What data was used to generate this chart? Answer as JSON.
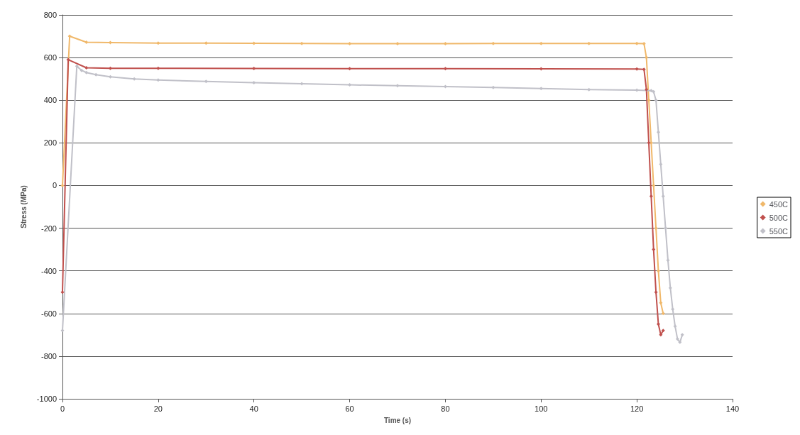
{
  "chart_data": {
    "type": "line",
    "xlabel": "Time (s)",
    "ylabel": "Stress (MPa)",
    "xlim": [
      0,
      140
    ],
    "xticks": [
      0,
      20,
      40,
      60,
      80,
      100,
      120,
      140
    ],
    "ylim": [
      -1000,
      800
    ],
    "yticks": [
      {
        "value": -1000,
        "label": "-1000"
      },
      -800,
      -600,
      -400,
      -200,
      0,
      200,
      400,
      600,
      800
    ],
    "grid": "y",
    "legend": "right",
    "marker": "diamond",
    "series": [
      {
        "name": "450C",
        "color": "#f0b86a",
        "x": [
          0,
          1.5,
          5,
          10,
          20,
          30,
          40,
          50,
          60,
          70,
          80,
          90,
          100,
          110,
          120,
          121.5,
          122,
          122.5,
          123,
          123.5,
          124,
          124.5,
          125,
          125.5
        ],
        "values": [
          0,
          700,
          672,
          670,
          668,
          668,
          667,
          666,
          665,
          665,
          665,
          666,
          666,
          666,
          666,
          665,
          600,
          400,
          200,
          0,
          -200,
          -400,
          -550,
          -600
        ]
      },
      {
        "name": "500C",
        "color": "#c0504d",
        "x": [
          0,
          1.2,
          5,
          10,
          20,
          40,
          60,
          80,
          100,
          120,
          121.5,
          122,
          122.5,
          123,
          123.5,
          124,
          124.5,
          125,
          125.5
        ],
        "values": [
          -500,
          590,
          552,
          550,
          550,
          549,
          548,
          548,
          547,
          546,
          545,
          450,
          200,
          -50,
          -300,
          -500,
          -650,
          -700,
          -680
        ]
      },
      {
        "name": "550C",
        "color": "#c0c0c8",
        "x": [
          0,
          3,
          4,
          5,
          7,
          10,
          15,
          20,
          30,
          40,
          50,
          60,
          70,
          80,
          90,
          100,
          110,
          120,
          123,
          123.5,
          124,
          124.5,
          125,
          125.5,
          126,
          126.5,
          127,
          127.5,
          128,
          128.5,
          129,
          129.5
        ],
        "values": [
          -680,
          560,
          540,
          530,
          520,
          510,
          500,
          495,
          488,
          482,
          477,
          472,
          468,
          464,
          460,
          455,
          450,
          447,
          445,
          440,
          400,
          250,
          100,
          -50,
          -200,
          -350,
          -480,
          -580,
          -660,
          -720,
          -735,
          -700
        ]
      }
    ]
  }
}
